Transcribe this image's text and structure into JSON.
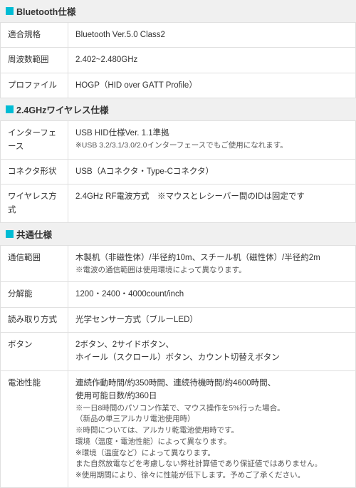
{
  "sections": [
    {
      "title": "Bluetooth仕様",
      "rows": [
        {
          "label": "適合規格",
          "value": "Bluetooth Ver.5.0 Class2"
        },
        {
          "label": "周波数範囲",
          "value": "2.402~2.480GHz"
        },
        {
          "label": "プロファイル",
          "value": "HOGP（HID over GATT Profile）"
        }
      ]
    },
    {
      "title": "2.4GHzワイヤレス仕様",
      "rows": [
        {
          "label": "インターフェース",
          "value": "USB HID仕様Ver. 1.1準拠",
          "note": "※USB 3.2/3.1/3.0/2.0インターフェースでもご使用になれます。"
        },
        {
          "label": "コネクタ形状",
          "value": "USB（Aコネクタ・Type-Cコネクタ）"
        },
        {
          "label": "ワイヤレス方式",
          "value": "2.4GHz RF電波方式　※マウスとレシーバー間のIDは固定です"
        }
      ]
    },
    {
      "title": "共通仕様",
      "rows": [
        {
          "label": "通信範囲",
          "value": "木製机（非磁性体）/半径約10m、スチール机（磁性体）/半径約2m",
          "note": "※電波の通信範囲は使用環境によって異なります。"
        },
        {
          "label": "分解能",
          "value": "1200・2400・4000count/inch"
        },
        {
          "label": "読み取り方式",
          "value": "光学センサー方式（ブルーLED）"
        },
        {
          "label": "ボタン",
          "value": "2ボタン、2サイドボタン、\nホイール（スクロール）ボタン、カウント切替えボタン"
        },
        {
          "label": "電池性能",
          "value": "連続作動時間/約350時間、連続待機時間/約4600時間、\n使用可能日数/約360日",
          "note": "※一日8時間のパソコン作業で、マウス操作を5%行った場合。\n（新品の単三アルカリ電池使用時）\n※時間については、アルカリ乾電池使用時です。\n環境（温度・電池性能）によって異なります。\n※環境（温度など）によって異なります。\nまた自然放電などを考慮しない弊社計算値であり保証値ではありません。\n※使用期間により、徐々に性能が低下します。予めご了承ください。"
        }
      ]
    }
  ]
}
